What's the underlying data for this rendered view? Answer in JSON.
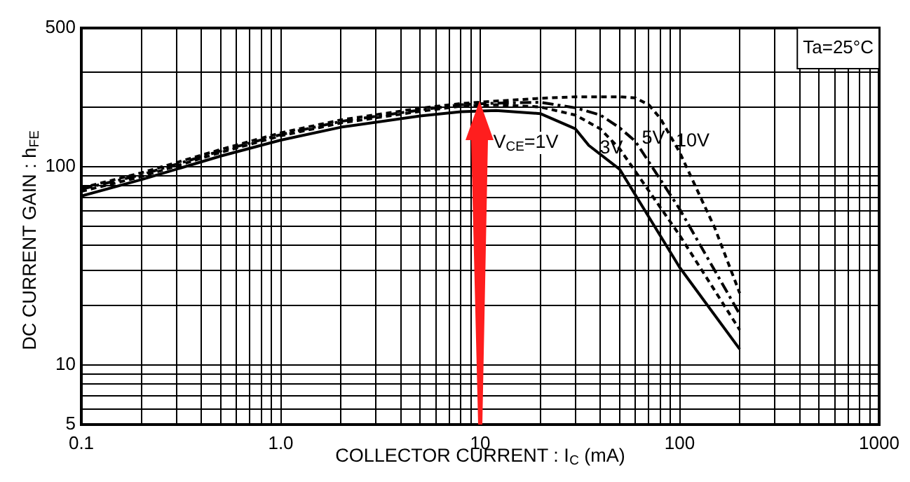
{
  "chart_data": {
    "type": "line",
    "xlabel": "COLLECTOR CURRENT : I$_{C}$ (mA)",
    "ylabel": "DC CURRENT GAIN : h$_{FE}$",
    "log": "xy",
    "xlim": [
      0.1,
      1000
    ],
    "ylim": [
      5,
      500
    ],
    "xticks": [
      0.1,
      {
        "value": 0.2,
        "label": null
      },
      {
        "value": 0.3,
        "label": null
      },
      {
        "value": 0.4,
        "label": null
      },
      {
        "value": 0.5,
        "label": null
      },
      {
        "value": 0.6,
        "label": null
      },
      {
        "value": 0.7,
        "label": null
      },
      {
        "value": 0.8,
        "label": null
      },
      {
        "value": 0.9,
        "label": null
      },
      {
        "value": 1,
        "label": "1.0"
      },
      {
        "value": 2,
        "label": null
      },
      {
        "value": 3,
        "label": null
      },
      {
        "value": 4,
        "label": null
      },
      {
        "value": 5,
        "label": null
      },
      {
        "value": 6,
        "label": null
      },
      {
        "value": 7,
        "label": null
      },
      {
        "value": 8,
        "label": null
      },
      {
        "value": 9,
        "label": null
      },
      10,
      {
        "value": 20,
        "label": null
      },
      {
        "value": 30,
        "label": null
      },
      {
        "value": 40,
        "label": null
      },
      {
        "value": 50,
        "label": null
      },
      {
        "value": 60,
        "label": null
      },
      {
        "value": 70,
        "label": null
      },
      {
        "value": 80,
        "label": null
      },
      {
        "value": 90,
        "label": null
      },
      100,
      {
        "value": 200,
        "label": null
      },
      {
        "value": 300,
        "label": null
      },
      {
        "value": 400,
        "label": null
      },
      {
        "value": 500,
        "label": null
      },
      {
        "value": 600,
        "label": null
      },
      {
        "value": 700,
        "label": null
      },
      {
        "value": 800,
        "label": null
      },
      {
        "value": 900,
        "label": null
      },
      1000
    ],
    "yticks": [
      5,
      {
        "value": 6,
        "label": null
      },
      {
        "value": 7,
        "label": null
      },
      {
        "value": 8,
        "label": null
      },
      {
        "value": 9,
        "label": null
      },
      10,
      {
        "value": 20,
        "label": null
      },
      {
        "value": 30,
        "label": null
      },
      {
        "value": 40,
        "label": null
      },
      {
        "value": 50,
        "label": null
      },
      {
        "value": 60,
        "label": null
      },
      {
        "value": 70,
        "label": null
      },
      {
        "value": 80,
        "label": null
      },
      {
        "value": 90,
        "label": null
      },
      100,
      {
        "value": 200,
        "label": null
      },
      {
        "value": 300,
        "label": null
      },
      500
    ],
    "grid": true,
    "legend": false,
    "marker": "none",
    "annotations": [
      "Ta=25°C"
    ],
    "series": [
      {
        "name": "V$_{CE}$=1V",
        "color": "#000000",
        "line_style": "solid",
        "x": [
          0.1,
          0.2,
          0.5,
          1,
          2,
          5,
          8,
          12,
          20,
          30,
          35,
          50,
          100,
          200
        ],
        "values": [
          71,
          86,
          113,
          136,
          158,
          180,
          189,
          192,
          185,
          155,
          128,
          97,
          31,
          12
        ]
      },
      {
        "name": "3V",
        "color": "#000000",
        "line_style": "dashed",
        "x": [
          0.1,
          0.2,
          0.5,
          1,
          2,
          5,
          8,
          12,
          20,
          30,
          40,
          50,
          100,
          200
        ],
        "values": [
          75,
          89,
          118,
          143,
          166,
          190,
          202,
          205,
          200,
          182,
          155,
          123,
          45,
          15
        ]
      },
      {
        "name": "5V",
        "color": "#000000",
        "line_style": "dashdot",
        "x": [
          0.1,
          0.2,
          0.5,
          1,
          2,
          5,
          8,
          12,
          20,
          30,
          40,
          50,
          60,
          100,
          200
        ],
        "values": [
          77,
          91,
          120,
          145,
          169,
          193,
          205,
          209,
          211,
          198,
          182,
          157,
          134,
          61,
          18
        ]
      },
      {
        "name": "10V",
        "color": "#000000",
        "line_style": "dashed",
        "x": [
          0.1,
          0.2,
          0.5,
          1,
          2,
          5,
          8,
          12,
          20,
          30,
          50,
          60,
          70,
          80,
          100,
          150,
          200
        ],
        "values": [
          78,
          93,
          122,
          148,
          172,
          197,
          208,
          214,
          221,
          225,
          225,
          222,
          205,
          175,
          118,
          49,
          23
        ]
      }
    ]
  }
}
